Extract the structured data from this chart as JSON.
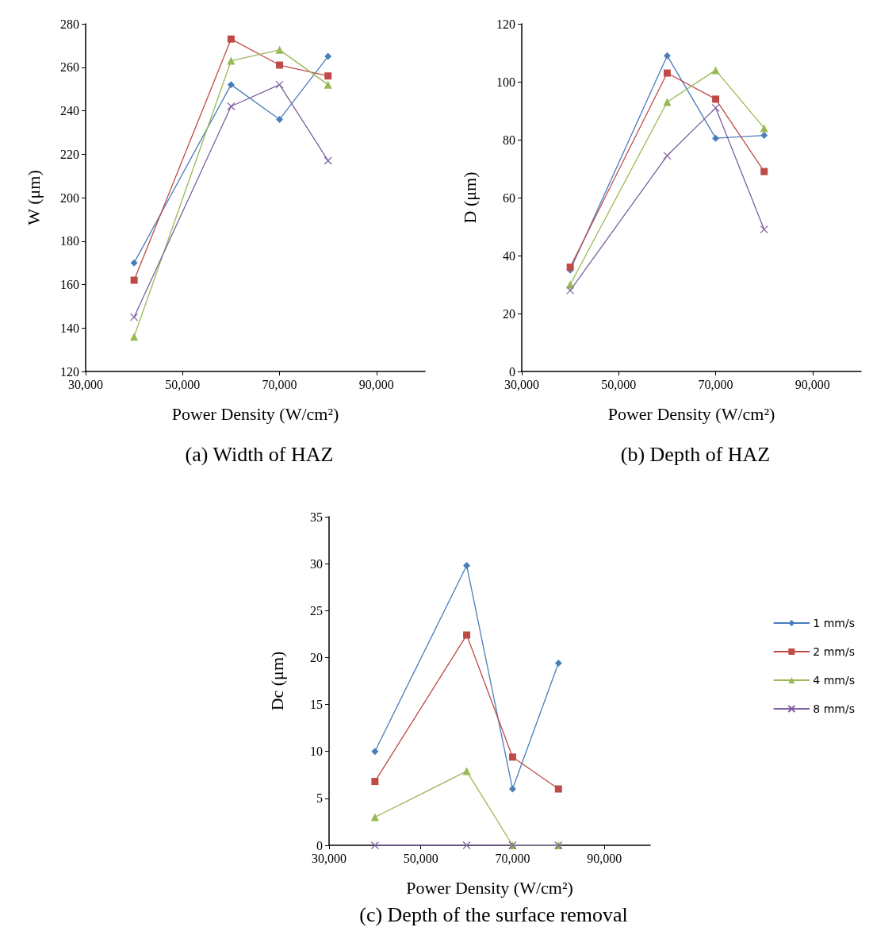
{
  "chart_data": [
    {
      "type": "line",
      "title": "(a) Width of HAZ",
      "xlabel": "Power Density (W/cm²)",
      "ylabel": "W (μm)",
      "xlim": [
        30000,
        100000
      ],
      "xticks": [
        {
          "value": 30000,
          "label": "30,000"
        },
        {
          "value": 50000,
          "label": "50,000"
        },
        {
          "value": 70000,
          "label": "70,000"
        },
        {
          "value": 90000,
          "label": "90,000"
        }
      ],
      "ylim": [
        120,
        280
      ],
      "yticks": [
        120,
        140,
        160,
        180,
        200,
        220,
        240,
        260,
        280
      ],
      "grid": false,
      "legend": false,
      "line_style": "solid",
      "x": [
        40000,
        60000,
        70000,
        80000
      ],
      "series": [
        {
          "color": "#4a7ebb",
          "marker": "diamond",
          "values": [
            170,
            252,
            236,
            265
          ]
        },
        {
          "color": "#be4b48",
          "marker": "square",
          "values": [
            162,
            273,
            261,
            256
          ]
        },
        {
          "color": "#98b954",
          "marker": "triangle",
          "values": [
            136,
            263,
            268,
            252
          ]
        },
        {
          "color": "#7d60a0",
          "marker": "cross",
          "values": [
            145,
            242,
            252,
            217
          ]
        }
      ]
    },
    {
      "type": "line",
      "title": "(b) Depth of HAZ",
      "xlabel": "Power Density (W/cm²)",
      "ylabel": "D (μm)",
      "xlim": [
        30000,
        100000
      ],
      "xticks": [
        {
          "value": 30000,
          "label": "30,000"
        },
        {
          "value": 50000,
          "label": "50,000"
        },
        {
          "value": 70000,
          "label": "70,000"
        },
        {
          "value": 90000,
          "label": "90,000"
        }
      ],
      "ylim": [
        0,
        120
      ],
      "yticks": [
        0,
        20,
        40,
        60,
        80,
        100,
        120
      ],
      "grid": false,
      "legend": false,
      "line_style": "solid",
      "x": [
        40000,
        60000,
        70000,
        80000
      ],
      "series": [
        {
          "color": "#4a7ebb",
          "marker": "diamond",
          "values": [
            35,
            109,
            80.5,
            81.5
          ]
        },
        {
          "color": "#be4b48",
          "marker": "square",
          "values": [
            36,
            103,
            94,
            69
          ]
        },
        {
          "color": "#98b954",
          "marker": "triangle",
          "values": [
            30,
            93,
            104,
            84
          ]
        },
        {
          "color": "#7d60a0",
          "marker": "cross",
          "values": [
            28,
            74.5,
            91,
            49
          ]
        }
      ]
    },
    {
      "type": "line",
      "title": "(c) Depth of the surface removal",
      "xlabel": "Power Density (W/cm²)",
      "ylabel": "Dc (μm)",
      "xlim": [
        30000,
        100000
      ],
      "xticks": [
        {
          "value": 30000,
          "label": "30,000"
        },
        {
          "value": 50000,
          "label": "50,000"
        },
        {
          "value": 70000,
          "label": "70,000"
        },
        {
          "value": 90000,
          "label": "90,000"
        }
      ],
      "ylim": [
        0,
        35
      ],
      "yticks": [
        0,
        5,
        10,
        15,
        20,
        25,
        30,
        35
      ],
      "grid": false,
      "legend": "right",
      "line_style": "solid",
      "x": [
        40000,
        60000,
        70000,
        80000
      ],
      "series": [
        {
          "name": "1 mm/s",
          "color": "#4a7ebb",
          "marker": "diamond",
          "values": [
            10,
            29.8,
            6,
            19.4
          ]
        },
        {
          "name": "2 mm/s",
          "color": "#be4b48",
          "marker": "square",
          "values": [
            6.8,
            22.4,
            9.4,
            6
          ]
        },
        {
          "name": "4 mm/s",
          "color": "#98b954",
          "marker": "triangle",
          "values": [
            3,
            7.9,
            0,
            0
          ]
        },
        {
          "name": "8 mm/s",
          "color": "#7d60a0",
          "marker": "cross",
          "values": [
            0,
            0,
            0,
            0
          ]
        }
      ]
    }
  ]
}
